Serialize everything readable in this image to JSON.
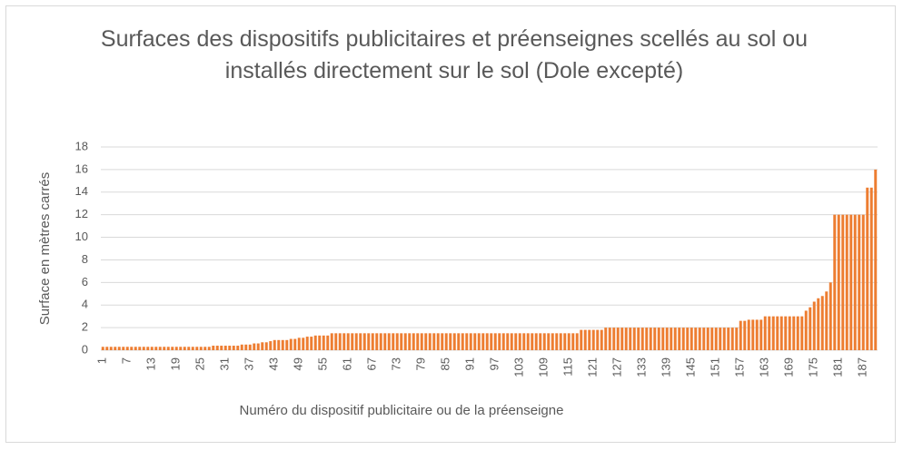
{
  "chart_data": {
    "type": "bar",
    "title": "Surfaces des dispositifs publicitaires et préenseignes scellés au sol ou installés directement sur le sol (Dole excepté)",
    "x_label": "Numéro du dispositif publicitaire ou de la préenseigne",
    "y_label": "Surface en mètres carrés",
    "color": "#ed7d31",
    "grid": true,
    "ylim": [
      0,
      18
    ],
    "yticks": [
      0,
      2,
      4,
      6,
      8,
      10,
      12,
      14,
      16,
      18
    ],
    "categories": [
      "1",
      null,
      null,
      null,
      null,
      null,
      "7",
      null,
      null,
      null,
      null,
      null,
      "13",
      null,
      null,
      null,
      null,
      null,
      "19",
      null,
      null,
      null,
      null,
      null,
      "25",
      null,
      null,
      null,
      null,
      null,
      "31",
      null,
      null,
      null,
      null,
      null,
      "37",
      null,
      null,
      null,
      null,
      null,
      "43",
      null,
      null,
      null,
      null,
      null,
      "49",
      null,
      null,
      null,
      null,
      null,
      "55",
      null,
      null,
      null,
      null,
      null,
      "61",
      null,
      null,
      null,
      null,
      null,
      "67",
      null,
      null,
      null,
      null,
      null,
      "73",
      null,
      null,
      null,
      null,
      null,
      "79",
      null,
      null,
      null,
      null,
      null,
      "85",
      null,
      null,
      null,
      null,
      null,
      "91",
      null,
      null,
      null,
      null,
      null,
      "97",
      null,
      null,
      null,
      null,
      null,
      "103",
      null,
      null,
      null,
      null,
      null,
      "109",
      null,
      null,
      null,
      null,
      null,
      "115",
      null,
      null,
      null,
      null,
      null,
      "121",
      null,
      null,
      null,
      null,
      null,
      "127",
      null,
      null,
      null,
      null,
      null,
      "133",
      null,
      null,
      null,
      null,
      null,
      "139",
      null,
      null,
      null,
      null,
      null,
      "145",
      null,
      null,
      null,
      null,
      null,
      "151",
      null,
      null,
      null,
      null,
      null,
      "157",
      null,
      null,
      null,
      null,
      null,
      "163",
      null,
      null,
      null,
      null,
      null,
      "169",
      null,
      null,
      null,
      null,
      null,
      "175",
      null,
      null,
      null,
      null,
      null,
      "181",
      null,
      null,
      null,
      null,
      null,
      "187",
      null,
      null,
      null
    ],
    "values": [
      0.3,
      0.3,
      0.3,
      0.3,
      0.3,
      0.3,
      0.3,
      0.3,
      0.3,
      0.3,
      0.3,
      0.3,
      0.3,
      0.3,
      0.3,
      0.3,
      0.3,
      0.3,
      0.3,
      0.3,
      0.3,
      0.3,
      0.3,
      0.3,
      0.3,
      0.3,
      0.3,
      0.4,
      0.4,
      0.4,
      0.4,
      0.4,
      0.4,
      0.4,
      0.5,
      0.5,
      0.5,
      0.6,
      0.6,
      0.7,
      0.7,
      0.8,
      0.9,
      0.9,
      0.9,
      0.9,
      1,
      1,
      1.1,
      1.1,
      1.2,
      1.2,
      1.3,
      1.3,
      1.3,
      1.3,
      1.5,
      1.5,
      1.5,
      1.5,
      1.5,
      1.5,
      1.5,
      1.5,
      1.5,
      1.5,
      1.5,
      1.5,
      1.5,
      1.5,
      1.5,
      1.5,
      1.5,
      1.5,
      1.5,
      1.5,
      1.5,
      1.5,
      1.5,
      1.5,
      1.5,
      1.5,
      1.5,
      1.5,
      1.5,
      1.5,
      1.5,
      1.5,
      1.5,
      1.5,
      1.5,
      1.5,
      1.5,
      1.5,
      1.5,
      1.5,
      1.5,
      1.5,
      1.5,
      1.5,
      1.5,
      1.5,
      1.5,
      1.5,
      1.5,
      1.5,
      1.5,
      1.5,
      1.5,
      1.5,
      1.5,
      1.5,
      1.5,
      1.5,
      1.5,
      1.5,
      1.5,
      1.8,
      1.8,
      1.8,
      1.8,
      1.8,
      1.8,
      2,
      2,
      2,
      2,
      2,
      2,
      2,
      2,
      2,
      2,
      2,
      2,
      2,
      2,
      2,
      2,
      2,
      2,
      2,
      2,
      2,
      2,
      2,
      2,
      2,
      2,
      2,
      2,
      2,
      2,
      2,
      2,
      2,
      2.6,
      2.6,
      2.7,
      2.7,
      2.7,
      2.7,
      3,
      3,
      3,
      3,
      3,
      3,
      3,
      3,
      3,
      3,
      3.5,
      3.8,
      4.3,
      4.6,
      4.8,
      5.2,
      6,
      12,
      12,
      12,
      12,
      12,
      12,
      12,
      12,
      14.4,
      14.4,
      16
    ]
  }
}
